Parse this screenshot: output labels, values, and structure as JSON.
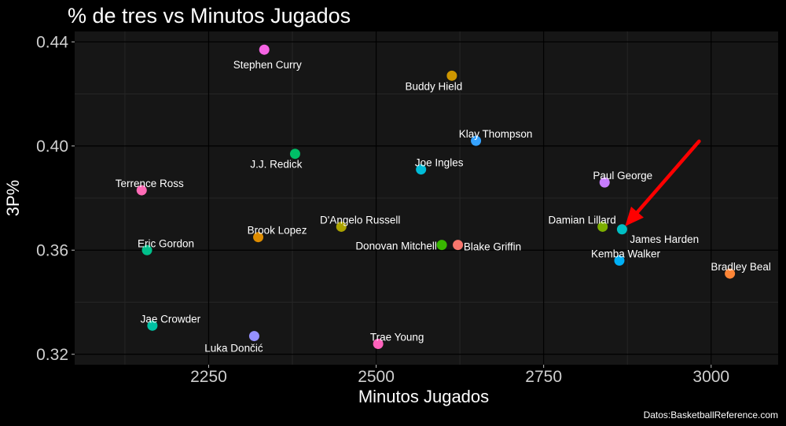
{
  "chart_data": {
    "type": "scatter",
    "title": "% de tres vs Minutos Jugados",
    "xlabel": "Minutos Jugados",
    "ylabel": "3P%",
    "caption": "Datos:BasketballReference.com",
    "xlim": [
      2050,
      3100
    ],
    "ylim": [
      0.316,
      0.444
    ],
    "x_ticks": [
      2250,
      2500,
      2750,
      3000
    ],
    "y_ticks": [
      0.32,
      0.36,
      0.4,
      0.44
    ],
    "y_tick_labels": [
      "0.32",
      "0.36",
      "0.40",
      "0.44"
    ],
    "grid": true,
    "legend": "none",
    "annotation": {
      "type": "arrow",
      "color": "#ff0000",
      "target_point": "James Harden"
    },
    "points": [
      {
        "name": "Stephen Curry",
        "x": 2333,
        "y": 0.437,
        "color": "#f564e3"
      },
      {
        "name": "Buddy Hield",
        "x": 2613,
        "y": 0.427,
        "color": "#cd9600"
      },
      {
        "name": "Klay Thompson",
        "x": 2649,
        "y": 0.402,
        "color": "#35a2ff"
      },
      {
        "name": "J.J. Redick",
        "x": 2379,
        "y": 0.397,
        "color": "#00be67"
      },
      {
        "name": "Joe Ingles",
        "x": 2567,
        "y": 0.391,
        "color": "#00bcd8"
      },
      {
        "name": "Paul George",
        "x": 2841,
        "y": 0.386,
        "color": "#c77cff"
      },
      {
        "name": "Terrence Ross",
        "x": 2150,
        "y": 0.383,
        "color": "#ff6bb6"
      },
      {
        "name": "D'Angelo Russell",
        "x": 2448,
        "y": 0.369,
        "color": "#aba300"
      },
      {
        "name": "Damian Lillard",
        "x": 2838,
        "y": 0.369,
        "color": "#7cae00"
      },
      {
        "name": "James Harden",
        "x": 2867,
        "y": 0.368,
        "color": "#00bfc4"
      },
      {
        "name": "Brook Lopez",
        "x": 2324,
        "y": 0.365,
        "color": "#de8c00"
      },
      {
        "name": "Donovan Mitchell",
        "x": 2598,
        "y": 0.362,
        "color": "#39b600"
      },
      {
        "name": "Blake Griffin",
        "x": 2622,
        "y": 0.362,
        "color": "#f8766d"
      },
      {
        "name": "Eric Gordon",
        "x": 2158,
        "y": 0.36,
        "color": "#00c08b"
      },
      {
        "name": "Kemba Walker",
        "x": 2863,
        "y": 0.356,
        "color": "#00b0f6"
      },
      {
        "name": "Bradley Beal",
        "x": 3028,
        "y": 0.351,
        "color": "#fd8536"
      },
      {
        "name": "Jae Crowder",
        "x": 2166,
        "y": 0.331,
        "color": "#00c1a3"
      },
      {
        "name": "Luka Dončić",
        "x": 2318,
        "y": 0.327,
        "color": "#9590ff"
      },
      {
        "name": "Trae Young",
        "x": 2503,
        "y": 0.324,
        "color": "#ff62bc"
      }
    ]
  }
}
